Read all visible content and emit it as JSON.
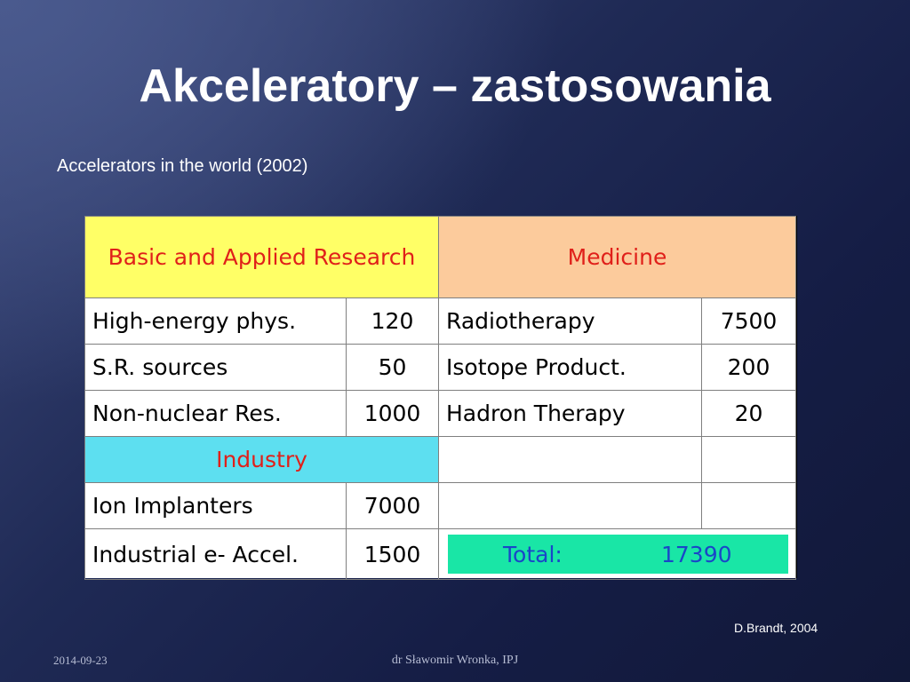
{
  "title": "Akceleratory – zastosowania",
  "subtitle": "Accelerators in the world (2002)",
  "table": {
    "headers": {
      "research": "Basic and Applied Research",
      "medicine": "Medicine",
      "industry": "Industry"
    },
    "research_rows": [
      {
        "label": "High-energy phys.",
        "value": "120"
      },
      {
        "label": "S.R. sources",
        "value": "50"
      },
      {
        "label": "Non-nuclear Res.",
        "value": "1000"
      }
    ],
    "medicine_rows": [
      {
        "label": "Radiotherapy",
        "value": "7500"
      },
      {
        "label": "Isotope Product.",
        "value": "200"
      },
      {
        "label": "Hadron Therapy",
        "value": "20"
      }
    ],
    "industry_rows": [
      {
        "label": "Ion Implanters",
        "value": "7000"
      },
      {
        "label": "Industrial e- Accel.",
        "value": "1500"
      }
    ],
    "total": {
      "label": "Total:",
      "value": "17390"
    }
  },
  "credit": "D.Brandt, 2004",
  "footer": {
    "date": "2014-09-23",
    "author": "dr Sławomir Wronka, IPJ"
  },
  "colors": {
    "research_header": "#ffff66",
    "medicine_header": "#fccb9c",
    "industry_header": "#5ddff0",
    "total_box": "#19e6a6",
    "header_text": "#e0201a",
    "total_text": "#1a46c8"
  }
}
